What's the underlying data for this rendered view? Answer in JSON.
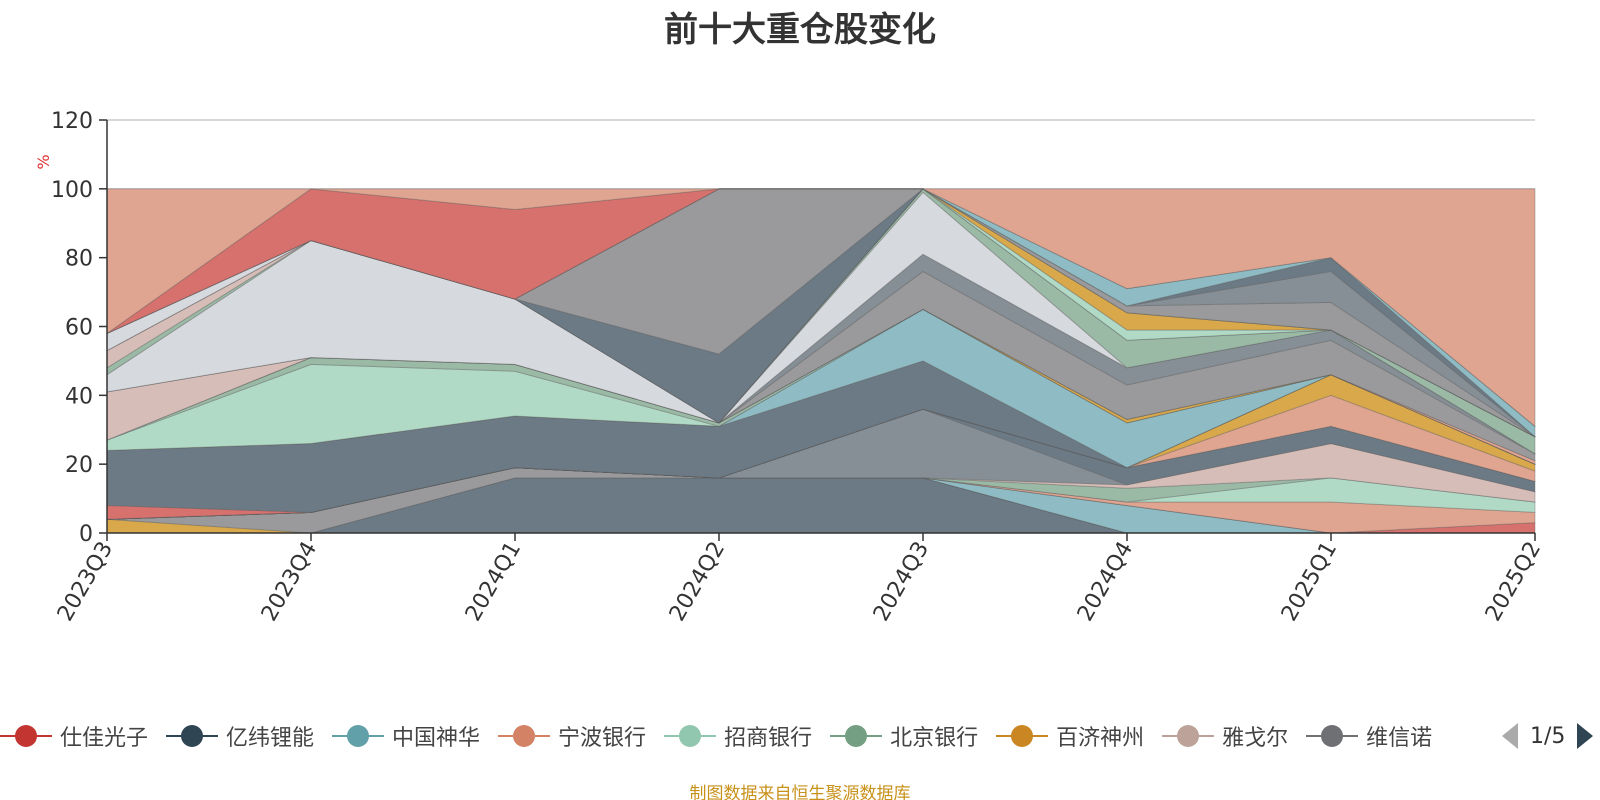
{
  "title": "前十大重仓股变化",
  "footer_note": "制图数据来自恒生聚源数据库",
  "chart_data": {
    "type": "area",
    "title": "前十大重仓股变化",
    "xlabel": "",
    "ylabel": "%",
    "ylim": [
      0,
      120
    ],
    "yticks": [
      0,
      20,
      40,
      60,
      80,
      100,
      120
    ],
    "grid": true,
    "stacked": true,
    "legend_position": "bottom",
    "categories": [
      "2023Q3",
      "2023Q4",
      "2024Q1",
      "2024Q2",
      "2024Q3",
      "2024Q4",
      "2025Q1",
      "2025Q2"
    ],
    "layers": [
      {
        "color": "#6c7a85",
        "top": [
          0,
          0,
          16,
          16,
          16,
          0,
          0,
          0
        ]
      },
      {
        "color": "#d8a84b",
        "top": [
          4,
          0,
          16,
          16,
          16,
          0,
          0,
          0
        ]
      },
      {
        "color": "#9a9a9c",
        "top": [
          4,
          6,
          19,
          16,
          16,
          0,
          0,
          0
        ]
      },
      {
        "color": "#8fbcc4",
        "top": [
          4,
          6,
          19,
          16,
          16,
          8,
          0,
          0
        ]
      },
      {
        "color": "#e0a590",
        "top": [
          4,
          6,
          19,
          16,
          16,
          8,
          0,
          0
        ]
      },
      {
        "color": "#d6716d",
        "top": [
          4,
          6,
          19,
          16,
          16,
          8,
          0,
          3
        ]
      },
      {
        "color": "#e0a590",
        "top": [
          4,
          6,
          19,
          16,
          16,
          9,
          9,
          6
        ]
      },
      {
        "color": "#b1dac6",
        "top": [
          4,
          6,
          19,
          16,
          16,
          9,
          16,
          9
        ]
      },
      {
        "color": "#9bbaa6",
        "top": [
          4,
          6,
          19,
          16,
          16,
          13,
          16,
          9
        ]
      },
      {
        "color": "#d6bdb8",
        "top": [
          4,
          6,
          19,
          16,
          16,
          14,
          26,
          12
        ]
      },
      {
        "color": "#868f96",
        "top": [
          4,
          6,
          19,
          16,
          36,
          14,
          26,
          12
        ]
      },
      {
        "color": "#6c7a85",
        "top": [
          4,
          6,
          19,
          16,
          36,
          19,
          31,
          15
        ]
      },
      {
        "color": "#8fbcc4",
        "top": [
          4,
          6,
          19,
          16,
          36,
          19,
          31,
          15
        ]
      },
      {
        "color": "#e0a590",
        "top": [
          4,
          6,
          19,
          16,
          36,
          19,
          40,
          18
        ]
      },
      {
        "color": "#d8a84b",
        "top": [
          4,
          6,
          19,
          16,
          36,
          19,
          46,
          20
        ]
      },
      {
        "color": "#d6716d",
        "top": [
          19,
          6,
          19,
          16,
          36,
          19,
          46,
          20
        ]
      },
      {
        "color": "#d6d9de",
        "top": [
          8,
          6,
          19,
          16,
          36,
          19,
          46,
          20
        ]
      },
      {
        "color": "#6c7a85",
        "top": [
          24,
          26,
          34,
          31,
          50,
          19,
          46,
          20
        ]
      },
      {
        "color": "#8fbcc4",
        "top": [
          24,
          26,
          34,
          31,
          65,
          32,
          46,
          20
        ]
      },
      {
        "color": "#b1dac6",
        "top": [
          27,
          49,
          47,
          31,
          65,
          32,
          46,
          20
        ]
      },
      {
        "color": "#9bbaa6",
        "top": [
          27,
          51,
          49,
          32,
          65,
          32,
          46,
          20
        ]
      },
      {
        "color": "#d8a84b",
        "top": [
          27,
          51,
          49,
          32,
          65,
          33,
          46,
          20
        ]
      },
      {
        "color": "#e0a590",
        "top": [
          27,
          51,
          49,
          32,
          65,
          33,
          46,
          21
        ]
      },
      {
        "color": "#d6bdb8",
        "top": [
          41,
          51,
          49,
          32,
          65,
          33,
          46,
          21
        ]
      },
      {
        "color": "#9a9a9c",
        "top": [
          41,
          51,
          49,
          32,
          76,
          43,
          56,
          23
        ]
      },
      {
        "color": "#868f96",
        "top": [
          41,
          51,
          49,
          32,
          81,
          48,
          59,
          23
        ]
      },
      {
        "color": "#d6d9de",
        "top": [
          46,
          85,
          68,
          32,
          99,
          48,
          59,
          23
        ]
      },
      {
        "color": "#9bbaa6",
        "top": [
          48,
          85,
          68,
          32,
          100,
          56,
          59,
          28
        ]
      },
      {
        "color": "#d6bdb8",
        "top": [
          53,
          85,
          68,
          32,
          100,
          56,
          59,
          28
        ]
      },
      {
        "color": "#b1dac6",
        "top": [
          53,
          85,
          68,
          32,
          100,
          59,
          59,
          28
        ]
      },
      {
        "color": "#d8a84b",
        "top": [
          53,
          85,
          68,
          32,
          100,
          64,
          59,
          28
        ]
      },
      {
        "color": "#d6d9de",
        "top": [
          58,
          85,
          68,
          32,
          100,
          64,
          59,
          28
        ]
      },
      {
        "color": "#6c7a85",
        "top": [
          58,
          85,
          68,
          52,
          100,
          64,
          59,
          28
        ]
      },
      {
        "color": "#9a9a9c",
        "top": [
          58,
          85,
          68,
          100,
          100,
          66,
          67,
          28
        ]
      },
      {
        "color": "#868f96",
        "top": [
          58,
          85,
          68,
          100,
          100,
          66,
          76,
          28
        ]
      },
      {
        "color": "#6c7a85",
        "top": [
          58,
          85,
          68,
          100,
          100,
          66,
          80,
          28
        ]
      },
      {
        "color": "#8fbcc4",
        "top": [
          58,
          85,
          68,
          100,
          100,
          71,
          80,
          31
        ]
      },
      {
        "color": "#d6716d",
        "top": [
          58,
          100,
          94,
          100,
          100,
          71,
          80,
          31
        ]
      },
      {
        "color": "#e0a590",
        "top": [
          100,
          100,
          100,
          100,
          100,
          100,
          100,
          100
        ]
      }
    ],
    "legend": [
      {
        "name": "仕佳光子",
        "color": "#c23531"
      },
      {
        "name": "亿纬锂能",
        "color": "#2f4554"
      },
      {
        "name": "中国神华",
        "color": "#61a0a8"
      },
      {
        "name": "宁波银行",
        "color": "#d48265"
      },
      {
        "name": "招商银行",
        "color": "#91c7ae"
      },
      {
        "name": "北京银行",
        "color": "#749f83"
      },
      {
        "name": "百济神州",
        "color": "#ca8622"
      },
      {
        "name": "雅戈尔",
        "color": "#bda29a"
      },
      {
        "name": "维信诺",
        "color": "#6e7074"
      }
    ],
    "legend_page": "1/5"
  }
}
